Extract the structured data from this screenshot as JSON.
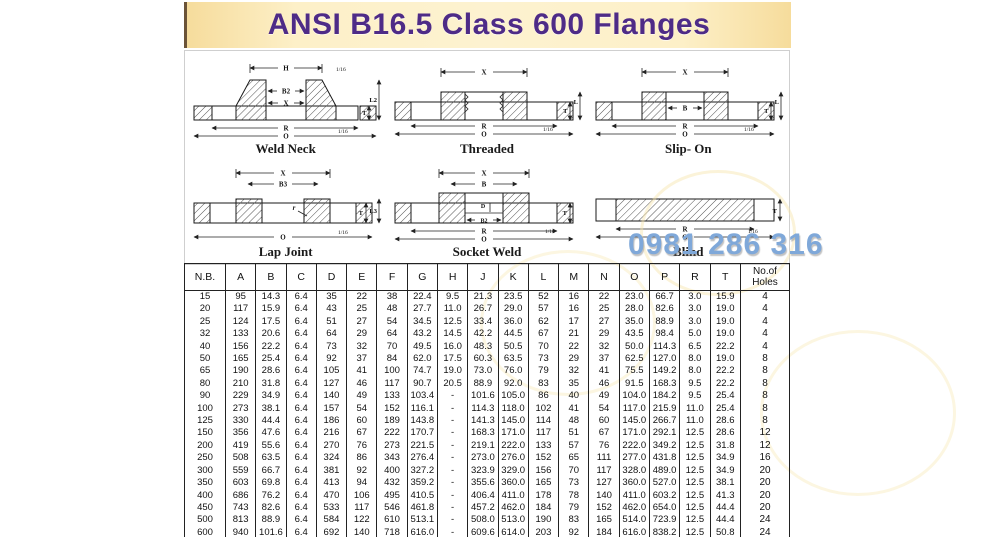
{
  "title": "ANSI B16.5 Class 600 Flanges",
  "watermark": "0981 286 316",
  "colors": {
    "title_bg": "#FBE7B4",
    "title_text": "#4E2B87",
    "watermark_text": "#7FA8D9",
    "table_border": "#222222",
    "drawing_line": "#1A1A1A"
  },
  "diagrams": {
    "weld_neck": {
      "caption": "Weld Neck",
      "labels": {
        "h": "H",
        "note_top": "1/16",
        "b2": "B2",
        "x": "X",
        "r": "R",
        "o": "O",
        "l2": "L2",
        "t": "T",
        "note_bottom": "1/16"
      }
    },
    "threaded": {
      "caption": "Threaded",
      "labels": {
        "x": "X",
        "r": "R",
        "o": "O",
        "l": "L",
        "t": "T",
        "note": "1/16"
      }
    },
    "slip_on": {
      "caption": "Slip- On",
      "labels": {
        "x": "X",
        "b": "B",
        "r": "R",
        "o": "O",
        "l": "L",
        "t": "T",
        "note": "1/16"
      }
    },
    "lap_joint": {
      "caption": "Lap Joint",
      "labels": {
        "x": "X",
        "b3": "B3",
        "radius": "r",
        "o": "O",
        "t": "T",
        "l3": "L3",
        "note": "1/16"
      }
    },
    "socket_weld": {
      "caption": "Socket Weld",
      "labels": {
        "x": "X",
        "b": "B",
        "d": "D",
        "b2": "B2",
        "r": "R",
        "o": "O",
        "t": "T",
        "note": "1/16"
      }
    },
    "blind": {
      "caption": "Blind",
      "labels": {
        "r": "R",
        "o": "O",
        "t": "T",
        "note": "1/16"
      }
    }
  },
  "table": {
    "headers": [
      "N.B.",
      "A",
      "B",
      "C",
      "D",
      "E",
      "F",
      "G",
      "H",
      "J",
      "K",
      "L",
      "M",
      "N",
      "O",
      "P",
      "R",
      "T",
      "No.of Holes"
    ],
    "rows": [
      [
        "15",
        "95",
        "14.3",
        "6.4",
        "35",
        "22",
        "38",
        "22.4",
        "9.5",
        "21.3",
        "23.5",
        "52",
        "16",
        "22",
        "23.0",
        "66.7",
        "3.0",
        "15.9",
        "4"
      ],
      [
        "20",
        "117",
        "15.9",
        "6.4",
        "43",
        "25",
        "48",
        "27.7",
        "11.0",
        "26.7",
        "29.0",
        "57",
        "16",
        "25",
        "28.0",
        "82.6",
        "3.0",
        "19.0",
        "4"
      ],
      [
        "25",
        "124",
        "17.5",
        "6.4",
        "51",
        "27",
        "54",
        "34.5",
        "12.5",
        "33.4",
        "36.0",
        "62",
        "17",
        "27",
        "35.0",
        "88.9",
        "3.0",
        "19.0",
        "4"
      ],
      [
        "32",
        "133",
        "20.6",
        "6.4",
        "64",
        "29",
        "64",
        "43.2",
        "14.5",
        "42.2",
        "44.5",
        "67",
        "21",
        "29",
        "43.5",
        "98.4",
        "5.0",
        "19.0",
        "4"
      ],
      [
        "40",
        "156",
        "22.2",
        "6.4",
        "73",
        "32",
        "70",
        "49.5",
        "16.0",
        "48.3",
        "50.5",
        "70",
        "22",
        "32",
        "50.0",
        "114.3",
        "6.5",
        "22.2",
        "4"
      ],
      [
        "50",
        "165",
        "25.4",
        "6.4",
        "92",
        "37",
        "84",
        "62.0",
        "17.5",
        "60.3",
        "63.5",
        "73",
        "29",
        "37",
        "62.5",
        "127.0",
        "8.0",
        "19.0",
        "8"
      ],
      [
        "65",
        "190",
        "28.6",
        "6.4",
        "105",
        "41",
        "100",
        "74.7",
        "19.0",
        "73.0",
        "76.0",
        "79",
        "32",
        "41",
        "75.5",
        "149.2",
        "8.0",
        "22.2",
        "8"
      ],
      [
        "80",
        "210",
        "31.8",
        "6.4",
        "127",
        "46",
        "117",
        "90.7",
        "20.5",
        "88.9",
        "92.0",
        "83",
        "35",
        "46",
        "91.5",
        "168.3",
        "9.5",
        "22.2",
        "8"
      ],
      [
        "90",
        "229",
        "34.9",
        "6.4",
        "140",
        "49",
        "133",
        "103.4",
        "-",
        "101.6",
        "105.0",
        "86",
        "40",
        "49",
        "104.0",
        "184.2",
        "9.5",
        "25.4",
        "8"
      ],
      [
        "100",
        "273",
        "38.1",
        "6.4",
        "157",
        "54",
        "152",
        "116.1",
        "-",
        "114.3",
        "118.0",
        "102",
        "41",
        "54",
        "117.0",
        "215.9",
        "11.0",
        "25.4",
        "8"
      ],
      [
        "125",
        "330",
        "44.4",
        "6.4",
        "186",
        "60",
        "189",
        "143.8",
        "-",
        "141.3",
        "145.0",
        "114",
        "48",
        "60",
        "145.0",
        "266.7",
        "11.0",
        "28.6",
        "8"
      ],
      [
        "150",
        "356",
        "47.6",
        "6.4",
        "216",
        "67",
        "222",
        "170.7",
        "-",
        "168.3",
        "171.0",
        "117",
        "51",
        "67",
        "171.0",
        "292.1",
        "12.5",
        "28.6",
        "12"
      ],
      [
        "200",
        "419",
        "55.6",
        "6.4",
        "270",
        "76",
        "273",
        "221.5",
        "-",
        "219.1",
        "222.0",
        "133",
        "57",
        "76",
        "222.0",
        "349.2",
        "12.5",
        "31.8",
        "12"
      ],
      [
        "250",
        "508",
        "63.5",
        "6.4",
        "324",
        "86",
        "343",
        "276.4",
        "-",
        "273.0",
        "276.0",
        "152",
        "65",
        "111",
        "277.0",
        "431.8",
        "12.5",
        "34.9",
        "16"
      ],
      [
        "300",
        "559",
        "66.7",
        "6.4",
        "381",
        "92",
        "400",
        "327.2",
        "-",
        "323.9",
        "329.0",
        "156",
        "70",
        "117",
        "328.0",
        "489.0",
        "12.5",
        "34.9",
        "20"
      ],
      [
        "350",
        "603",
        "69.8",
        "6.4",
        "413",
        "94",
        "432",
        "359.2",
        "-",
        "355.6",
        "360.0",
        "165",
        "73",
        "127",
        "360.0",
        "527.0",
        "12.5",
        "38.1",
        "20"
      ],
      [
        "400",
        "686",
        "76.2",
        "6.4",
        "470",
        "106",
        "495",
        "410.5",
        "-",
        "406.4",
        "411.0",
        "178",
        "78",
        "140",
        "411.0",
        "603.2",
        "12.5",
        "41.3",
        "20"
      ],
      [
        "450",
        "743",
        "82.6",
        "6.4",
        "533",
        "117",
        "546",
        "461.8",
        "-",
        "457.2",
        "462.0",
        "184",
        "79",
        "152",
        "462.0",
        "654.0",
        "12.5",
        "44.4",
        "20"
      ],
      [
        "500",
        "813",
        "88.9",
        "6.4",
        "584",
        "122",
        "610",
        "513.1",
        "-",
        "508.0",
        "513.0",
        "190",
        "83",
        "165",
        "514.0",
        "723.9",
        "12.5",
        "44.4",
        "24"
      ],
      [
        "600",
        "940",
        "101.6",
        "6.4",
        "692",
        "140",
        "718",
        "616.0",
        "-",
        "609.6",
        "614.0",
        "203",
        "92",
        "184",
        "616.0",
        "838.2",
        "12.5",
        "50.8",
        "24"
      ]
    ]
  }
}
